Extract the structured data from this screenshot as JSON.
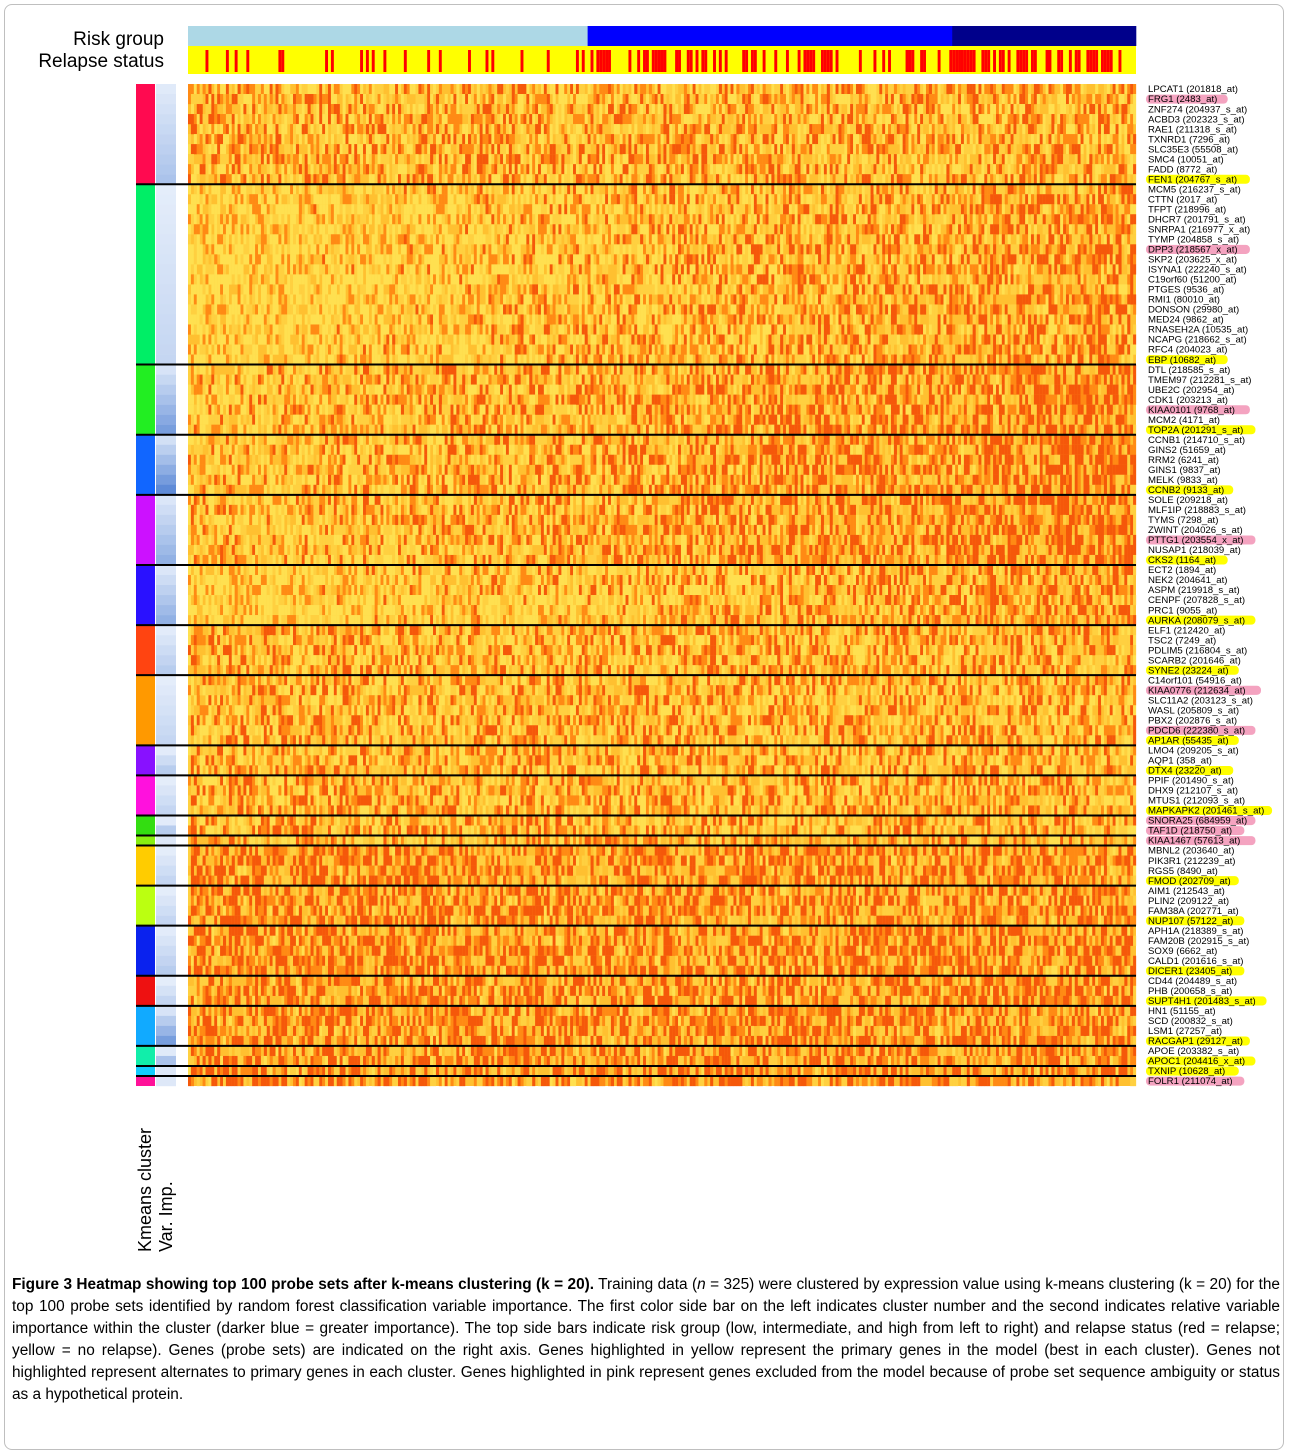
{
  "chart_data": {
    "type": "heatmap",
    "side_bar_labels": {
      "top": [
        "Risk group",
        "Relapse status"
      ],
      "left": [
        "Kmeans cluster",
        "Var. Imp."
      ]
    },
    "n_samples": 325,
    "risk_groups": [
      {
        "name": "low",
        "count": 137,
        "color": "#add8e6"
      },
      {
        "name": "intermediate",
        "count": 125,
        "color": "#0000ff"
      },
      {
        "name": "high",
        "count": 63,
        "color": "#00008b"
      }
    ],
    "relapse_colors": {
      "relapse": "#ff0000",
      "no_relapse": "#ffff00"
    },
    "highlight_colors": {
      "primary": "#ffff00",
      "excluded": "#f4a3c0"
    },
    "genes": [
      {
        "label": "LPCAT1 (201818_at)",
        "hl": ""
      },
      {
        "label": "FRG1 (2483_at)",
        "hl": "pink"
      },
      {
        "label": "ZNF274 (204937_s_at)",
        "hl": ""
      },
      {
        "label": "ACBD3 (202323_s_at)",
        "hl": ""
      },
      {
        "label": "RAE1 (211318_s_at)",
        "hl": ""
      },
      {
        "label": "TXNRD1 (7296_at)",
        "hl": ""
      },
      {
        "label": "SLC35E3 (55508_at)",
        "hl": ""
      },
      {
        "label": "SMC4 (10051_at)",
        "hl": ""
      },
      {
        "label": "FADD (8772_at)",
        "hl": ""
      },
      {
        "label": "FEN1 (204767_s_at)",
        "hl": "yellow"
      },
      {
        "label": "MCM5 (216237_s_at)",
        "hl": ""
      },
      {
        "label": "CTTN (2017_at)",
        "hl": ""
      },
      {
        "label": "TFPT (218996_at)",
        "hl": ""
      },
      {
        "label": "DHCR7 (201791_s_at)",
        "hl": ""
      },
      {
        "label": "SNRPA1 (216977_x_at)",
        "hl": ""
      },
      {
        "label": "TYMP (204858_s_at)",
        "hl": ""
      },
      {
        "label": "DPP3 (218567_x_at)",
        "hl": "pink"
      },
      {
        "label": "SKP2 (203625_x_at)",
        "hl": ""
      },
      {
        "label": "ISYNA1 (222240_s_at)",
        "hl": ""
      },
      {
        "label": "C19orf60 (51200_at)",
        "hl": ""
      },
      {
        "label": "PTGES (9536_at)",
        "hl": ""
      },
      {
        "label": "RMI1 (80010_at)",
        "hl": ""
      },
      {
        "label": "DONSON (29980_at)",
        "hl": ""
      },
      {
        "label": "MED24 (9862_at)",
        "hl": ""
      },
      {
        "label": "RNASEH2A (10535_at)",
        "hl": ""
      },
      {
        "label": "NCAPG (218662_s_at)",
        "hl": ""
      },
      {
        "label": "RFC4 (204023_at)",
        "hl": ""
      },
      {
        "label": "EBP (10682_at)",
        "hl": "yellow"
      },
      {
        "label": "DTL (218585_s_at)",
        "hl": ""
      },
      {
        "label": "TMEM97 (212281_s_at)",
        "hl": ""
      },
      {
        "label": "UBE2C (202954_at)",
        "hl": ""
      },
      {
        "label": "CDK1 (203213_at)",
        "hl": ""
      },
      {
        "label": "KIAA0101 (9768_at)",
        "hl": "pink"
      },
      {
        "label": "MCM2 (4171_at)",
        "hl": ""
      },
      {
        "label": "TOP2A (201291_s_at)",
        "hl": "yellow"
      },
      {
        "label": "CCNB1 (214710_s_at)",
        "hl": ""
      },
      {
        "label": "GINS2 (51659_at)",
        "hl": ""
      },
      {
        "label": "RRM2 (6241_at)",
        "hl": ""
      },
      {
        "label": "GINS1 (9837_at)",
        "hl": ""
      },
      {
        "label": "MELK (9833_at)",
        "hl": ""
      },
      {
        "label": "CCNB2 (9133_at)",
        "hl": "yellow"
      },
      {
        "label": "SOLE (209218_at)",
        "hl": ""
      },
      {
        "label": "MLF1IP (218883_s_at)",
        "hl": ""
      },
      {
        "label": "TYMS (7298_at)",
        "hl": ""
      },
      {
        "label": "ZWINT (204026_s_at)",
        "hl": ""
      },
      {
        "label": "PTTG1 (203554_x_at)",
        "hl": "pink"
      },
      {
        "label": "NUSAP1 (218039_at)",
        "hl": ""
      },
      {
        "label": "CKS2 (1164_at)",
        "hl": "yellow"
      },
      {
        "label": "ECT2 (1894_at)",
        "hl": ""
      },
      {
        "label": "NEK2 (204641_at)",
        "hl": ""
      },
      {
        "label": "ASPM (219918_s_at)",
        "hl": ""
      },
      {
        "label": "CENPF (207828_s_at)",
        "hl": ""
      },
      {
        "label": "PRC1 (9055_at)",
        "hl": ""
      },
      {
        "label": "AURKA (208079_s_at)",
        "hl": "yellow"
      },
      {
        "label": "ELF1 (212420_at)",
        "hl": ""
      },
      {
        "label": "TSC2 (7249_at)",
        "hl": ""
      },
      {
        "label": "PDLIM5 (216804_s_at)",
        "hl": ""
      },
      {
        "label": "SCARB2 (201646_at)",
        "hl": ""
      },
      {
        "label": "SYNE2 (23224_at)",
        "hl": "yellow"
      },
      {
        "label": "C14orf101 (54916_at)",
        "hl": ""
      },
      {
        "label": "KIAA0776 (212634_at)",
        "hl": "pink"
      },
      {
        "label": "SLC11A2 (203123_s_at)",
        "hl": ""
      },
      {
        "label": "WASL (205809_s_at)",
        "hl": ""
      },
      {
        "label": "PBX2 (202876_s_at)",
        "hl": ""
      },
      {
        "label": "PDCD6 (222380_s_at)",
        "hl": "pink"
      },
      {
        "label": "AP1AR (55435_at)",
        "hl": "yellow"
      },
      {
        "label": "LMO4 (209205_s_at)",
        "hl": ""
      },
      {
        "label": "AQP1 (358_at)",
        "hl": ""
      },
      {
        "label": "DTX4 (23220_at)",
        "hl": "yellow"
      },
      {
        "label": "PPIF (201490_s_at)",
        "hl": ""
      },
      {
        "label": "DHX9 (212107_s_at)",
        "hl": ""
      },
      {
        "label": "MTUS1 (212093_s_at)",
        "hl": ""
      },
      {
        "label": "MAPKAPK2 (201461_s_at)",
        "hl": "yellow"
      },
      {
        "label": "SNORA25 (684959_at)",
        "hl": "pink"
      },
      {
        "label": "TAF1D (218750_at)",
        "hl": "pink"
      },
      {
        "label": "KIAA1467 (57613_at)",
        "hl": "pink"
      },
      {
        "label": "MBNL2 (203640_at)",
        "hl": ""
      },
      {
        "label": "PIK3R1 (212239_at)",
        "hl": ""
      },
      {
        "label": "RGS5 (8490_at)",
        "hl": ""
      },
      {
        "label": "FMOD (202709_at)",
        "hl": "yellow"
      },
      {
        "label": "AIM1 (212543_at)",
        "hl": ""
      },
      {
        "label": "PLIN2 (209122_at)",
        "hl": ""
      },
      {
        "label": "FAM38A (202771_at)",
        "hl": ""
      },
      {
        "label": "NUP107 (57122_at)",
        "hl": "yellow"
      },
      {
        "label": "APH1A (218389_s_at)",
        "hl": ""
      },
      {
        "label": "FAM20B (202915_s_at)",
        "hl": ""
      },
      {
        "label": "SOX9 (6662_at)",
        "hl": ""
      },
      {
        "label": "CALD1 (201616_s_at)",
        "hl": ""
      },
      {
        "label": "DICER1 (23405_at)",
        "hl": "yellow"
      },
      {
        "label": "CD44 (204489_s_at)",
        "hl": ""
      },
      {
        "label": "PHB (200658_s_at)",
        "hl": ""
      },
      {
        "label": "SUPT4H1 (201483_s_at)",
        "hl": "yellow"
      },
      {
        "label": "HN1 (51155_at)",
        "hl": ""
      },
      {
        "label": "SCD (200832_s_at)",
        "hl": ""
      },
      {
        "label": "LSM1 (27257_at)",
        "hl": ""
      },
      {
        "label": "RACGAP1 (29127_at)",
        "hl": "yellow"
      },
      {
        "label": "APOE (203382_s_at)",
        "hl": ""
      },
      {
        "label": "APOC1 (204416_x_at)",
        "hl": "yellow"
      },
      {
        "label": "TXNIP (10628_at)",
        "hl": "yellow"
      },
      {
        "label": "FOLR1 (211074_at)",
        "hl": "pink"
      }
    ],
    "clusters": [
      {
        "size": 10,
        "color": "#ff0a50",
        "level": 0.25
      },
      {
        "size": 18,
        "color": "#00ee66",
        "level": 0.15
      },
      {
        "size": 7,
        "color": "#22ee22",
        "level": 0.45
      },
      {
        "size": 6,
        "color": "#1166ff",
        "level": 0.55
      },
      {
        "size": 7,
        "color": "#cc11ff",
        "level": 0.35
      },
      {
        "size": 6,
        "color": "#2a11ff",
        "level": 0.35
      },
      {
        "size": 5,
        "color": "#ff4411",
        "level": 0.2
      },
      {
        "size": 7,
        "color": "#ff9900",
        "level": 0.15
      },
      {
        "size": 3,
        "color": "#8811ff",
        "level": 0.2
      },
      {
        "size": 4,
        "color": "#ff11dd",
        "level": 0.15
      },
      {
        "size": 2,
        "color": "#33dd11",
        "level": 0.2
      },
      {
        "size": 1,
        "color": "#88ee11",
        "level": 0.3
      },
      {
        "size": 4,
        "color": "#ffcc00",
        "level": 0.15
      },
      {
        "size": 4,
        "color": "#bbff11",
        "level": 0.15
      },
      {
        "size": 5,
        "color": "#0a22ee",
        "level": 0.2
      },
      {
        "size": 3,
        "color": "#ee1111",
        "level": 0.15
      },
      {
        "size": 4,
        "color": "#11aaff",
        "level": 0.45
      },
      {
        "size": 2,
        "color": "#11eeaa",
        "level": 0.25
      },
      {
        "size": 1,
        "color": "#11ccff",
        "level": 0.3
      },
      {
        "size": 1,
        "color": "#ff1199",
        "level": 0.3
      }
    ]
  },
  "caption": {
    "bold": "Figure 3 Heatmap showing top 100 probe sets after k-means clustering (k = 20).",
    "text_1": " Training data (",
    "n_italic": "n",
    "text_2": " = 325) were clustered by expression value using k-means clustering (k = 20) for the top 100 probe sets identified by random forest classification variable importance. The first color side bar on the left indicates cluster number and the second indicates relative variable importance within the cluster (darker blue = greater importance). The top side bars indicate risk group (low, intermediate, and high from left to right) and relapse status (red = relapse; yellow = no relapse). Genes (probe sets) are indicated on the right axis. Genes highlighted in yellow represent the primary genes in the model (best in each cluster). Genes not highlighted represent alternates to primary genes in each cluster. Genes highlighted in pink represent genes excluded from the model because of probe set sequence ambiguity or status as a hypothetical protein."
  }
}
